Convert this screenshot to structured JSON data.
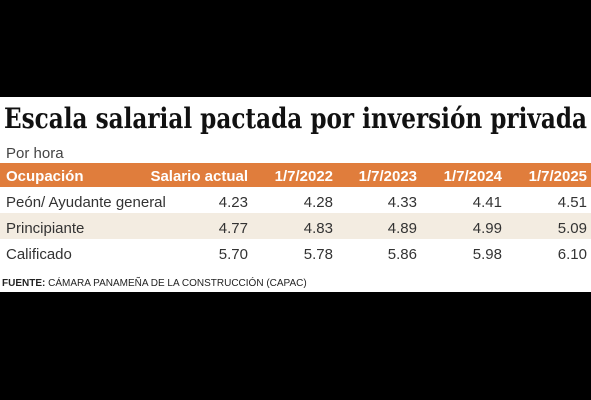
{
  "header": {
    "title": "Escala salarial pactada por inversión privada",
    "subtitle": "Por hora"
  },
  "table": {
    "header": [
      "Ocupación",
      "Salario actual",
      "1/7/2022",
      "1/7/2023",
      "1/7/2024",
      "1/7/2025"
    ],
    "rows": [
      [
        "Peón/ Ayudante general",
        "4.23",
        "4.28",
        "4.33",
        "4.41",
        "4.51"
      ],
      [
        "Principiante",
        "4.77",
        "4.83",
        "4.89",
        "4.99",
        "5.09"
      ],
      [
        "Calificado",
        "5.70",
        "5.78",
        "5.86",
        "5.98",
        "6.10"
      ]
    ]
  },
  "footer": {
    "label": "FUENTE:",
    "text": "CÁMARA PANAMEÑA DE LA CONSTRUCCIÓN (CAPAC)"
  }
}
